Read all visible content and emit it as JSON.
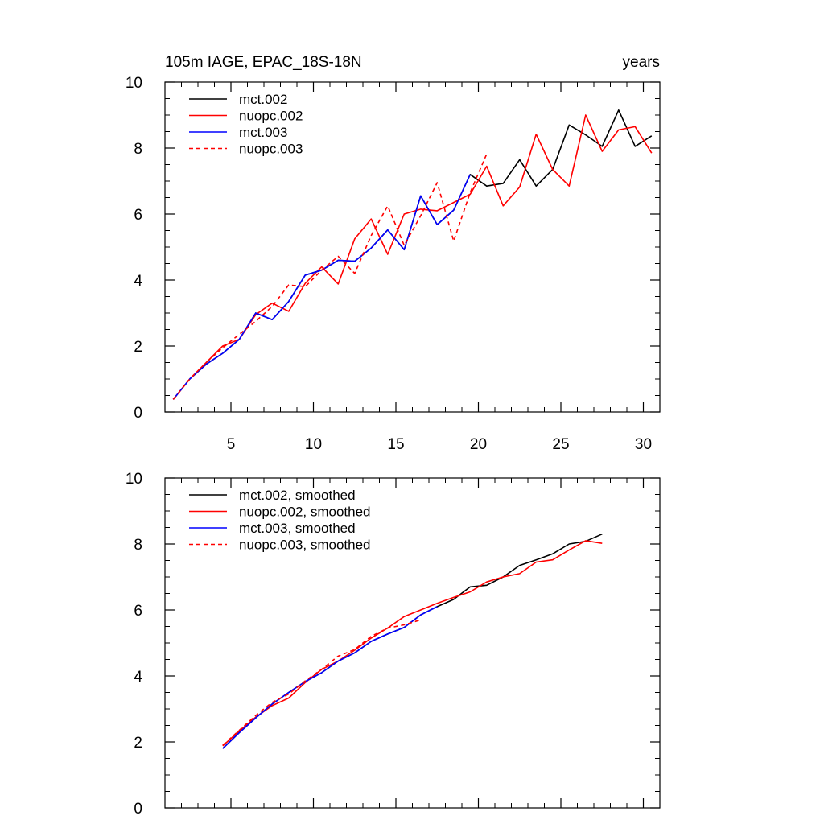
{
  "chart_data": [
    {
      "type": "line",
      "title": "105m IAGE, EPAC_18S-18N",
      "units_label": "years",
      "xlabel": "",
      "ylabel": "",
      "xlim": [
        1,
        31
      ],
      "ylim": [
        0,
        10
      ],
      "x_ticks": [
        5,
        10,
        15,
        20,
        25,
        30
      ],
      "y_ticks": [
        0,
        2,
        4,
        6,
        8,
        10
      ],
      "grid": false,
      "legend_position": "top-left",
      "series": [
        {
          "name": "mct.002",
          "color": "#000000",
          "dash": "solid",
          "x": [
            1.5,
            2.5,
            3.5,
            4.5,
            5.5,
            6.5,
            7.5,
            8.5,
            9.5,
            10.5,
            11.5,
            12.5,
            13.5,
            14.5,
            15.5,
            16.5,
            17.5,
            18.5,
            19.5,
            20.5,
            21.5,
            22.5,
            23.5,
            24.5,
            25.5,
            26.5,
            27.5,
            28.5,
            29.5,
            30.5
          ],
          "values": [
            0.38,
            1.0,
            1.45,
            1.78,
            2.2,
            3.0,
            2.8,
            3.35,
            4.15,
            4.3,
            4.6,
            4.57,
            4.97,
            5.52,
            4.92,
            6.55,
            5.68,
            6.12,
            7.2,
            6.85,
            6.93,
            7.65,
            6.85,
            7.35,
            8.7,
            8.4,
            8.05,
            9.15,
            8.05,
            8.37
          ]
        },
        {
          "name": "nuopc.002",
          "color": "#ff0000",
          "dash": "solid",
          "x": [
            1.5,
            2.5,
            3.5,
            4.5,
            5.5,
            6.5,
            7.5,
            8.5,
            9.5,
            10.5,
            11.5,
            12.5,
            13.5,
            14.5,
            15.5,
            16.5,
            17.5,
            18.5,
            19.5,
            20.5,
            21.5,
            22.5,
            23.5,
            24.5,
            25.5,
            26.5,
            27.5,
            28.5,
            29.5,
            30.5
          ],
          "values": [
            0.38,
            1.0,
            1.5,
            2.0,
            2.2,
            2.95,
            3.3,
            3.05,
            3.9,
            4.4,
            3.88,
            5.25,
            5.85,
            4.78,
            6.0,
            6.15,
            6.1,
            6.35,
            6.6,
            7.45,
            6.25,
            6.82,
            8.42,
            7.35,
            6.85,
            9.0,
            7.9,
            8.55,
            8.65,
            7.85
          ]
        },
        {
          "name": "mct.003",
          "color": "#0000ff",
          "dash": "solid",
          "x": [
            1.5,
            2.5,
            3.5,
            4.5,
            5.5,
            6.5,
            7.5,
            8.5,
            9.5,
            10.5,
            11.5,
            12.5,
            13.5,
            14.5,
            15.5,
            16.5,
            17.5,
            18.5,
            19.5
          ],
          "values": [
            0.38,
            1.0,
            1.45,
            1.78,
            2.2,
            3.0,
            2.8,
            3.35,
            4.15,
            4.3,
            4.6,
            4.57,
            4.97,
            5.52,
            4.92,
            6.55,
            5.68,
            6.12,
            7.2
          ]
        },
        {
          "name": "nuopc.003",
          "color": "#ff0000",
          "dash": "dashed",
          "x": [
            1.5,
            2.5,
            3.5,
            4.5,
            5.5,
            6.5,
            7.5,
            8.5,
            9.5,
            10.5,
            11.5,
            12.5,
            13.5,
            14.5,
            15.5,
            16.5,
            17.5,
            18.5,
            19.5,
            20.5
          ],
          "values": [
            0.38,
            1.0,
            1.5,
            1.95,
            2.35,
            2.75,
            3.2,
            3.85,
            3.8,
            4.3,
            4.72,
            4.2,
            5.35,
            6.25,
            5.05,
            5.95,
            6.95,
            5.18,
            6.65,
            7.82
          ]
        }
      ]
    },
    {
      "type": "line",
      "title": "",
      "xlabel": "",
      "ylabel": "",
      "xlim": [
        1,
        31
      ],
      "ylim": [
        0,
        10
      ],
      "x_ticks": [
        5,
        10,
        15,
        20,
        25,
        30
      ],
      "y_ticks": [
        0,
        2,
        4,
        6,
        8,
        10
      ],
      "grid": false,
      "legend_position": "top-left",
      "series": [
        {
          "name": "mct.002, smoothed",
          "color": "#000000",
          "dash": "solid",
          "x": [
            4.5,
            5.5,
            6.5,
            7.5,
            8.5,
            9.5,
            10.5,
            11.5,
            12.5,
            13.5,
            14.5,
            15.5,
            16.5,
            17.5,
            18.5,
            19.5,
            20.5,
            21.5,
            22.5,
            23.5,
            24.5,
            25.5,
            26.5,
            27.5
          ],
          "values": [
            1.8,
            2.28,
            2.73,
            3.15,
            3.5,
            3.83,
            4.1,
            4.45,
            4.7,
            5.05,
            5.27,
            5.47,
            5.85,
            6.1,
            6.32,
            6.7,
            6.75,
            7.0,
            7.35,
            7.52,
            7.7,
            8.0,
            8.08,
            8.3
          ]
        },
        {
          "name": "nuopc.002, smoothed",
          "color": "#ff0000",
          "dash": "solid",
          "x": [
            4.5,
            5.5,
            6.5,
            7.5,
            8.5,
            9.5,
            10.5,
            11.5,
            12.5,
            13.5,
            14.5,
            15.5,
            16.5,
            17.5,
            18.5,
            19.5,
            20.5,
            21.5,
            22.5,
            23.5,
            24.5,
            25.5,
            26.5,
            27.5
          ],
          "values": [
            1.88,
            2.33,
            2.75,
            3.1,
            3.33,
            3.8,
            4.2,
            4.45,
            4.78,
            5.15,
            5.45,
            5.8,
            6.0,
            6.2,
            6.38,
            6.55,
            6.85,
            7.0,
            7.1,
            7.45,
            7.52,
            7.82,
            8.1,
            8.02
          ]
        },
        {
          "name": "mct.003, smoothed",
          "color": "#0000ff",
          "dash": "solid",
          "x": [
            4.5,
            5.5,
            6.5,
            7.5,
            8.5,
            9.5,
            10.5,
            11.5,
            12.5,
            13.5,
            14.5,
            15.5,
            16.5,
            17.5
          ],
          "values": [
            1.8,
            2.28,
            2.73,
            3.15,
            3.5,
            3.83,
            4.1,
            4.45,
            4.7,
            5.05,
            5.27,
            5.47,
            5.85,
            6.1
          ]
        },
        {
          "name": "nuopc.003, smoothed",
          "color": "#ff0000",
          "dash": "dashed",
          "x": [
            4.5,
            5.5,
            6.5,
            7.5,
            8.5,
            9.5,
            10.5,
            11.5,
            12.5,
            13.5,
            14.5,
            15.5,
            16.5
          ],
          "values": [
            1.9,
            2.35,
            2.8,
            3.2,
            3.45,
            3.85,
            4.2,
            4.6,
            4.8,
            5.2,
            5.45,
            5.55,
            5.7
          ]
        }
      ]
    }
  ]
}
